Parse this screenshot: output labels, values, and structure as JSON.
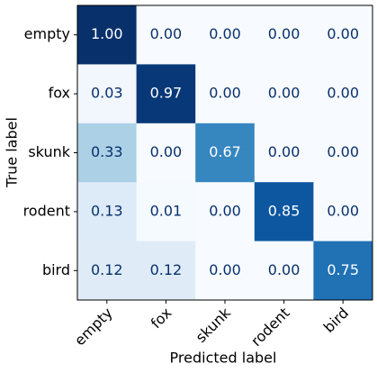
{
  "chart_data": {
    "type": "heatmap",
    "x_label": "Predicted label",
    "y_label": "True label",
    "x_categories": [
      "empty",
      "fox",
      "skunk",
      "rodent",
      "bird"
    ],
    "y_categories": [
      "empty",
      "fox",
      "skunk",
      "rodent",
      "bird"
    ],
    "values": [
      [
        1.0,
        0.0,
        0.0,
        0.0,
        0.0
      ],
      [
        0.03,
        0.97,
        0.0,
        0.0,
        0.0
      ],
      [
        0.33,
        0.0,
        0.67,
        0.0,
        0.0
      ],
      [
        0.13,
        0.01,
        0.0,
        0.85,
        0.0
      ],
      [
        0.12,
        0.12,
        0.0,
        0.0,
        0.75
      ]
    ],
    "value_labels": [
      [
        "1.00",
        "0.00",
        "0.00",
        "0.00",
        "0.00"
      ],
      [
        "0.03",
        "0.97",
        "0.00",
        "0.00",
        "0.00"
      ],
      [
        "0.33",
        "0.00",
        "0.67",
        "0.00",
        "0.00"
      ],
      [
        "0.13",
        "0.01",
        "0.00",
        "0.85",
        "0.00"
      ],
      [
        "0.12",
        "0.12",
        "0.00",
        "0.00",
        "0.75"
      ]
    ],
    "colormap": "Blues",
    "zlim": [
      0,
      1
    ]
  }
}
